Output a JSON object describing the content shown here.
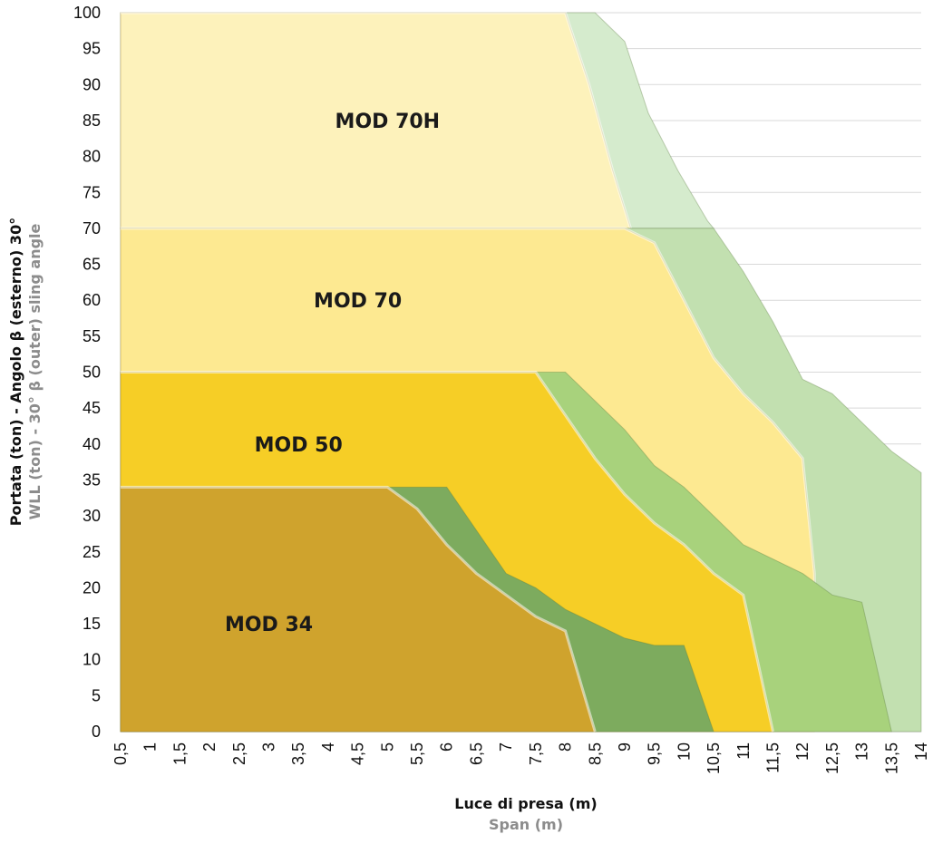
{
  "chart_data": {
    "type": "area",
    "ylabel": "Portata (ton) - Angolo β (esterno) 30°",
    "ylabel_sub": "WLL (ton) - 30° β (outer) sling angle",
    "xlabel": "Luce di presa (m)",
    "xlabel_sub": "Span (m)",
    "xlim": [
      0.5,
      14
    ],
    "ylim": [
      0,
      100
    ],
    "grid": "horizontal",
    "x_ticks": [
      "0,5",
      "1",
      "1,5",
      "2",
      "2,5",
      "3",
      "3,5",
      "4",
      "4,5",
      "5",
      "5,5",
      "6",
      "6,5",
      "7",
      "7,5",
      "8",
      "8,5",
      "9",
      "9,5",
      "10",
      "10,5",
      "11",
      "11,5",
      "12",
      "12,5",
      "13",
      "13,5",
      "14"
    ],
    "y_ticks": [
      "0",
      "5",
      "10",
      "15",
      "20",
      "25",
      "30",
      "35",
      "40",
      "45",
      "50",
      "55",
      "60",
      "65",
      "70",
      "75",
      "80",
      "85",
      "90",
      "95",
      "100"
    ],
    "series": [
      {
        "name": "MOD 70H",
        "color": "#fdf2bb",
        "extended_color": "#d5ebcd",
        "y_base": 70,
        "label_pos": [
          5.0,
          85
        ],
        "outline": [
          [
            0.5,
            100
          ],
          [
            8.0,
            100
          ],
          [
            8.4,
            90
          ],
          [
            8.8,
            78
          ],
          [
            9.1,
            70
          ]
        ],
        "extended": [
          [
            8.0,
            100
          ],
          [
            8.5,
            100
          ],
          [
            9.0,
            96
          ],
          [
            9.4,
            86
          ],
          [
            9.9,
            78
          ],
          [
            10.4,
            71
          ],
          [
            10.5,
            70
          ]
        ]
      },
      {
        "name": "MOD 70",
        "color": "#fde991",
        "extended_color": "#c2e0b0",
        "y_base": 0,
        "label_pos": [
          4.5,
          60
        ],
        "outline": [
          [
            0.5,
            70
          ],
          [
            9.0,
            70
          ],
          [
            9.5,
            68
          ],
          [
            10.0,
            60
          ],
          [
            10.5,
            52
          ],
          [
            11.0,
            47
          ],
          [
            11.5,
            43
          ],
          [
            12.0,
            38
          ],
          [
            12.2,
            22
          ],
          [
            12.2,
            0
          ]
        ],
        "extended": [
          [
            10.5,
            70
          ],
          [
            11.0,
            64
          ],
          [
            11.5,
            57
          ],
          [
            12.0,
            49
          ],
          [
            12.5,
            47
          ],
          [
            13.0,
            43
          ],
          [
            13.5,
            39
          ],
          [
            14.0,
            36
          ],
          [
            14.0,
            0
          ],
          [
            13.5,
            0
          ]
        ]
      },
      {
        "name": "MOD 50",
        "color": "#f6ce26",
        "extended_color": "#a8d27c",
        "y_base": 0,
        "label_pos": [
          3.5,
          40
        ],
        "outline": [
          [
            0.5,
            50
          ],
          [
            7.5,
            50
          ],
          [
            8.0,
            44
          ],
          [
            8.5,
            38
          ],
          [
            9.0,
            33
          ],
          [
            9.5,
            29
          ],
          [
            10.0,
            26
          ],
          [
            10.5,
            22
          ],
          [
            11.0,
            19
          ],
          [
            11.5,
            0
          ]
        ],
        "extended": [
          [
            7.5,
            50
          ],
          [
            8.0,
            50
          ],
          [
            8.5,
            46
          ],
          [
            9.0,
            42
          ],
          [
            9.5,
            37
          ],
          [
            10.0,
            34
          ],
          [
            10.5,
            30
          ],
          [
            11.0,
            26
          ],
          [
            11.5,
            24
          ],
          [
            12.0,
            22
          ],
          [
            12.5,
            19
          ],
          [
            13.0,
            18
          ],
          [
            13.5,
            0
          ]
        ]
      },
      {
        "name": "MOD 34",
        "color": "#cfa32d",
        "extended_color": "#7dab5e",
        "y_base": 0,
        "label_pos": [
          3.0,
          15
        ],
        "outline": [
          [
            0.5,
            34
          ],
          [
            5.0,
            34
          ],
          [
            5.5,
            31
          ],
          [
            6.0,
            26
          ],
          [
            6.5,
            22
          ],
          [
            7.0,
            19
          ],
          [
            7.5,
            16
          ],
          [
            8.0,
            14
          ],
          [
            8.5,
            0
          ]
        ],
        "extended": [
          [
            5.0,
            34
          ],
          [
            6.0,
            34
          ],
          [
            6.5,
            28
          ],
          [
            7.0,
            22
          ],
          [
            7.5,
            20
          ],
          [
            8.0,
            17
          ],
          [
            8.5,
            15
          ],
          [
            9.0,
            13
          ],
          [
            9.5,
            12
          ],
          [
            10.0,
            12
          ],
          [
            10.5,
            0
          ]
        ]
      }
    ]
  }
}
